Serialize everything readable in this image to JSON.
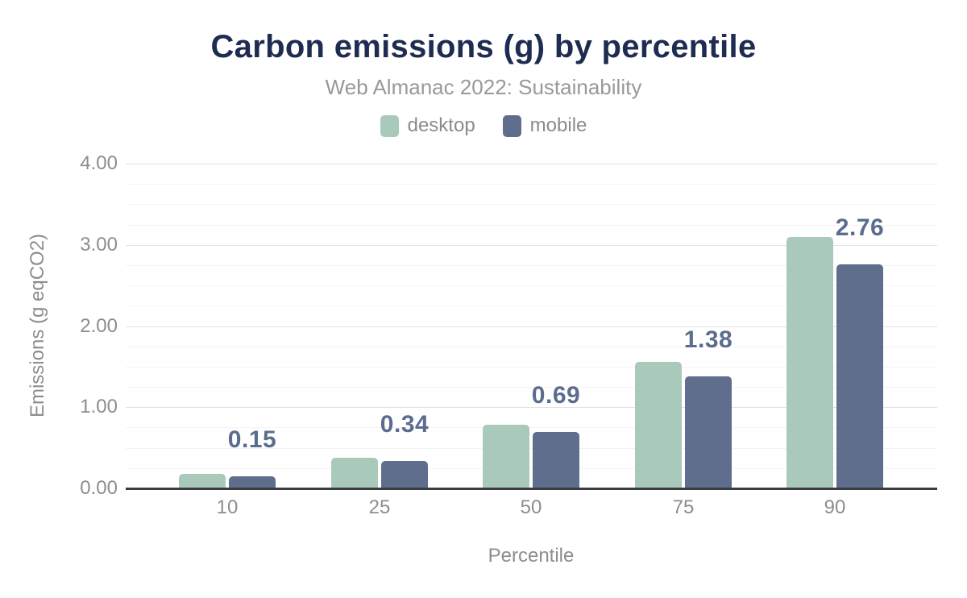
{
  "chart": {
    "title": "Carbon emissions (g) by percentile",
    "subtitle": "Web Almanac 2022: Sustainability",
    "x_axis_title": "Percentile",
    "y_axis_title": "Emissions (g eqCO2)"
  },
  "legend": {
    "items": [
      {
        "label": "desktop",
        "color": "#a9cabb"
      },
      {
        "label": "mobile",
        "color": "#5e6e8c"
      }
    ]
  },
  "colors": {
    "title": "#1e2c52",
    "subtitle": "#97999b",
    "axis_text": "#8d8d8d",
    "desktop_bar": "#a9cabb",
    "mobile_bar": "#5e6e8c",
    "data_label": "#5b6d8e",
    "grid_major": "#e0e0e0",
    "grid_minor": "#f4f4f4",
    "axis_line": "#3b3c40"
  },
  "chart_data": {
    "type": "bar",
    "title": "Carbon emissions (g) by percentile",
    "subtitle": "Web Almanac 2022: Sustainability",
    "categories": [
      "10",
      "25",
      "50",
      "75",
      "90"
    ],
    "series": [
      {
        "name": "desktop",
        "color": "#a9cabb",
        "values": [
          0.18,
          0.38,
          0.78,
          1.56,
          3.1
        ]
      },
      {
        "name": "mobile",
        "color": "#5e6e8c",
        "values": [
          0.15,
          0.34,
          0.69,
          1.38,
          2.76
        ]
      }
    ],
    "data_labels": {
      "labeled_series": "mobile",
      "values": [
        "0.15",
        "0.34",
        "0.69",
        "1.38",
        "2.76"
      ],
      "color": "#5b6d8e"
    },
    "xlabel": "Percentile",
    "ylabel": "Emissions (g eqCO2)",
    "ylim": [
      0,
      4
    ],
    "y_ticks": [
      "0.00",
      "1.00",
      "2.00",
      "3.00",
      "4.00"
    ],
    "y_tick_step": 1.0,
    "minor_grid_step": 0.25,
    "grid": true,
    "legend_position": "top"
  }
}
